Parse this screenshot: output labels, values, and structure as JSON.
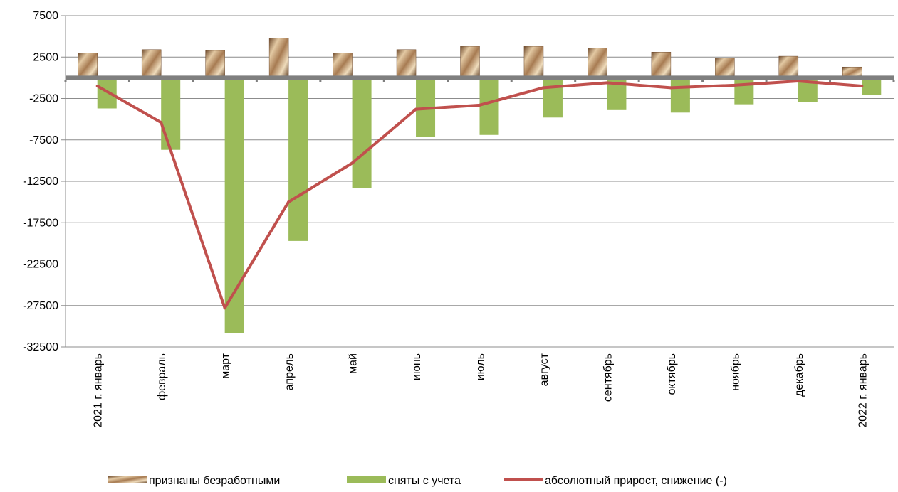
{
  "chart_data": {
    "type": "bar",
    "title": "",
    "xlabel": "",
    "ylabel": "",
    "ylim": [
      -32500,
      7500
    ],
    "yticks": [
      7500,
      2500,
      -2500,
      -7500,
      -12500,
      -17500,
      -22500,
      -27500,
      -32500
    ],
    "categories": [
      "2021 г. январь",
      "февраль",
      "март",
      "апрель",
      "май",
      "июнь",
      "июль",
      "август",
      "сентябрь",
      "октябрь",
      "ноябрь",
      "декабрь",
      "2022 г. январь"
    ],
    "series": [
      {
        "name": "признаны безработными",
        "kind": "bar",
        "color": "#b8906a",
        "values": [
          3000,
          3400,
          3300,
          4800,
          3000,
          3400,
          3800,
          3800,
          3600,
          3100,
          2400,
          2600,
          1300
        ]
      },
      {
        "name": "сняты с учета",
        "kind": "bar",
        "color": "#9bbb59",
        "values": [
          -3700,
          -8700,
          -30800,
          -19700,
          -13300,
          -7100,
          -6900,
          -4800,
          -3900,
          -4200,
          -3200,
          -2900,
          -2100
        ]
      },
      {
        "name": "абсолютный прирост, снижение (-)",
        "kind": "line",
        "color": "#c0504d",
        "values": [
          -1000,
          -5400,
          -27800,
          -15000,
          -10300,
          -3800,
          -3300,
          -1200,
          -600,
          -1200,
          -900,
          -400,
          -1000
        ]
      }
    ],
    "grid": "horizontal",
    "legend": "bottom"
  }
}
